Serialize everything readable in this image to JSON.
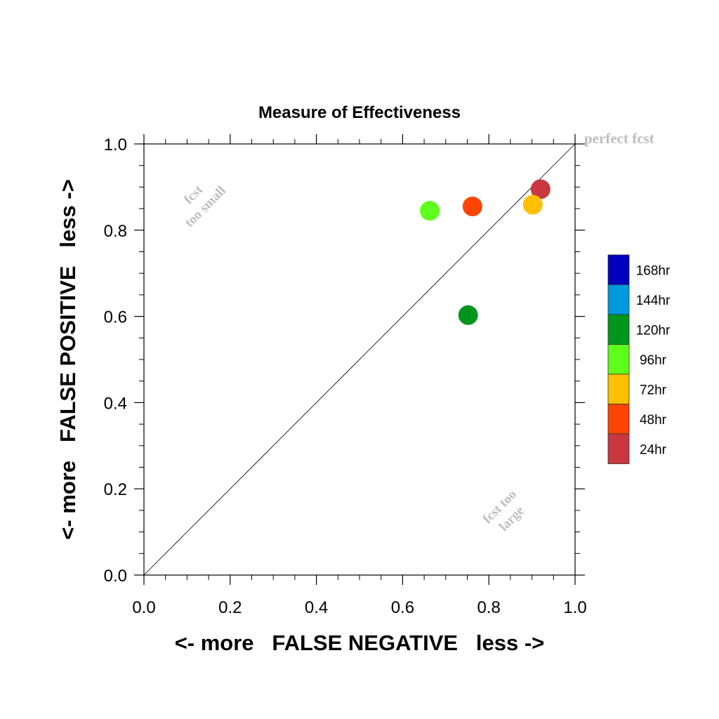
{
  "chart_data": {
    "type": "scatter",
    "title": "Measure of Effectiveness",
    "xlabel": "<- more   FALSE NEGATIVE   less ->",
    "ylabel": "<- more   FALSE POSITIVE   less ->",
    "xlim": [
      0.0,
      1.0
    ],
    "ylim": [
      0.0,
      1.0
    ],
    "x_ticks": [
      "0.0",
      "0.2",
      "0.4",
      "0.6",
      "0.8",
      "1.0"
    ],
    "y_ticks": [
      "0.0",
      "0.2",
      "0.4",
      "0.6",
      "0.8",
      "1.0"
    ],
    "grid": false,
    "diagonal": {
      "from": [
        0.0,
        0.0
      ],
      "to": [
        1.0,
        1.0
      ]
    },
    "annotations": {
      "perfect": "perfect fcst",
      "small_line1": "fcst",
      "small_line2": "too small",
      "large_line1": "fcst too",
      "large_line2": "large"
    },
    "legend": {
      "placement": "right",
      "entries": [
        {
          "label": "168hr",
          "color": "#0000c0"
        },
        {
          "label": "144hr",
          "color": "#0099dd"
        },
        {
          "label": "120hr",
          "color": "#00961e"
        },
        {
          "label": "96hr",
          "color": "#5dff1b"
        },
        {
          "label": "72hr",
          "color": "#ffc000"
        },
        {
          "label": "48hr",
          "color": "#ff4400"
        },
        {
          "label": "24hr",
          "color": "#c8383e"
        }
      ]
    },
    "points": [
      {
        "series": "24hr",
        "x": 0.92,
        "y": 0.895,
        "color": "#c8383e"
      },
      {
        "series": "48hr",
        "x": 0.762,
        "y": 0.855,
        "color": "#ff4400"
      },
      {
        "series": "72hr",
        "x": 0.902,
        "y": 0.859,
        "color": "#ffc000"
      },
      {
        "series": "96hr",
        "x": 0.663,
        "y": 0.845,
        "color": "#5dff1b"
      },
      {
        "series": "120hr",
        "x": 0.752,
        "y": 0.603,
        "color": "#00961e"
      }
    ]
  }
}
